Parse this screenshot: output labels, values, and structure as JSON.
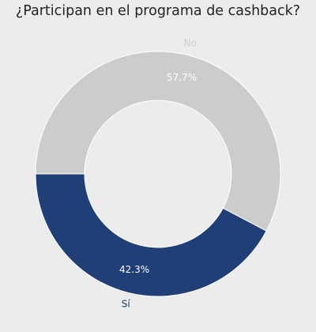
{
  "colors": {
    "background": "#ececec",
    "title": "#222222",
    "slice_no": "#cccccc",
    "slice_si": "#1f3f76",
    "pct_text": "#ffffff",
    "edge": "#ffffff"
  },
  "chart_data": {
    "type": "pie",
    "variant": "donut",
    "title": "¿Participan en el programa de cashback?",
    "start_angle_deg": 180,
    "direction": "counterclockwise",
    "slices": [
      {
        "label": "Sí",
        "value": 42.3,
        "pct_label": "42.3%",
        "color": "#1f3f76"
      },
      {
        "label": "No",
        "value": 57.7,
        "pct_label": "57.7%",
        "color": "#cccccc"
      }
    ],
    "legend": "none"
  }
}
